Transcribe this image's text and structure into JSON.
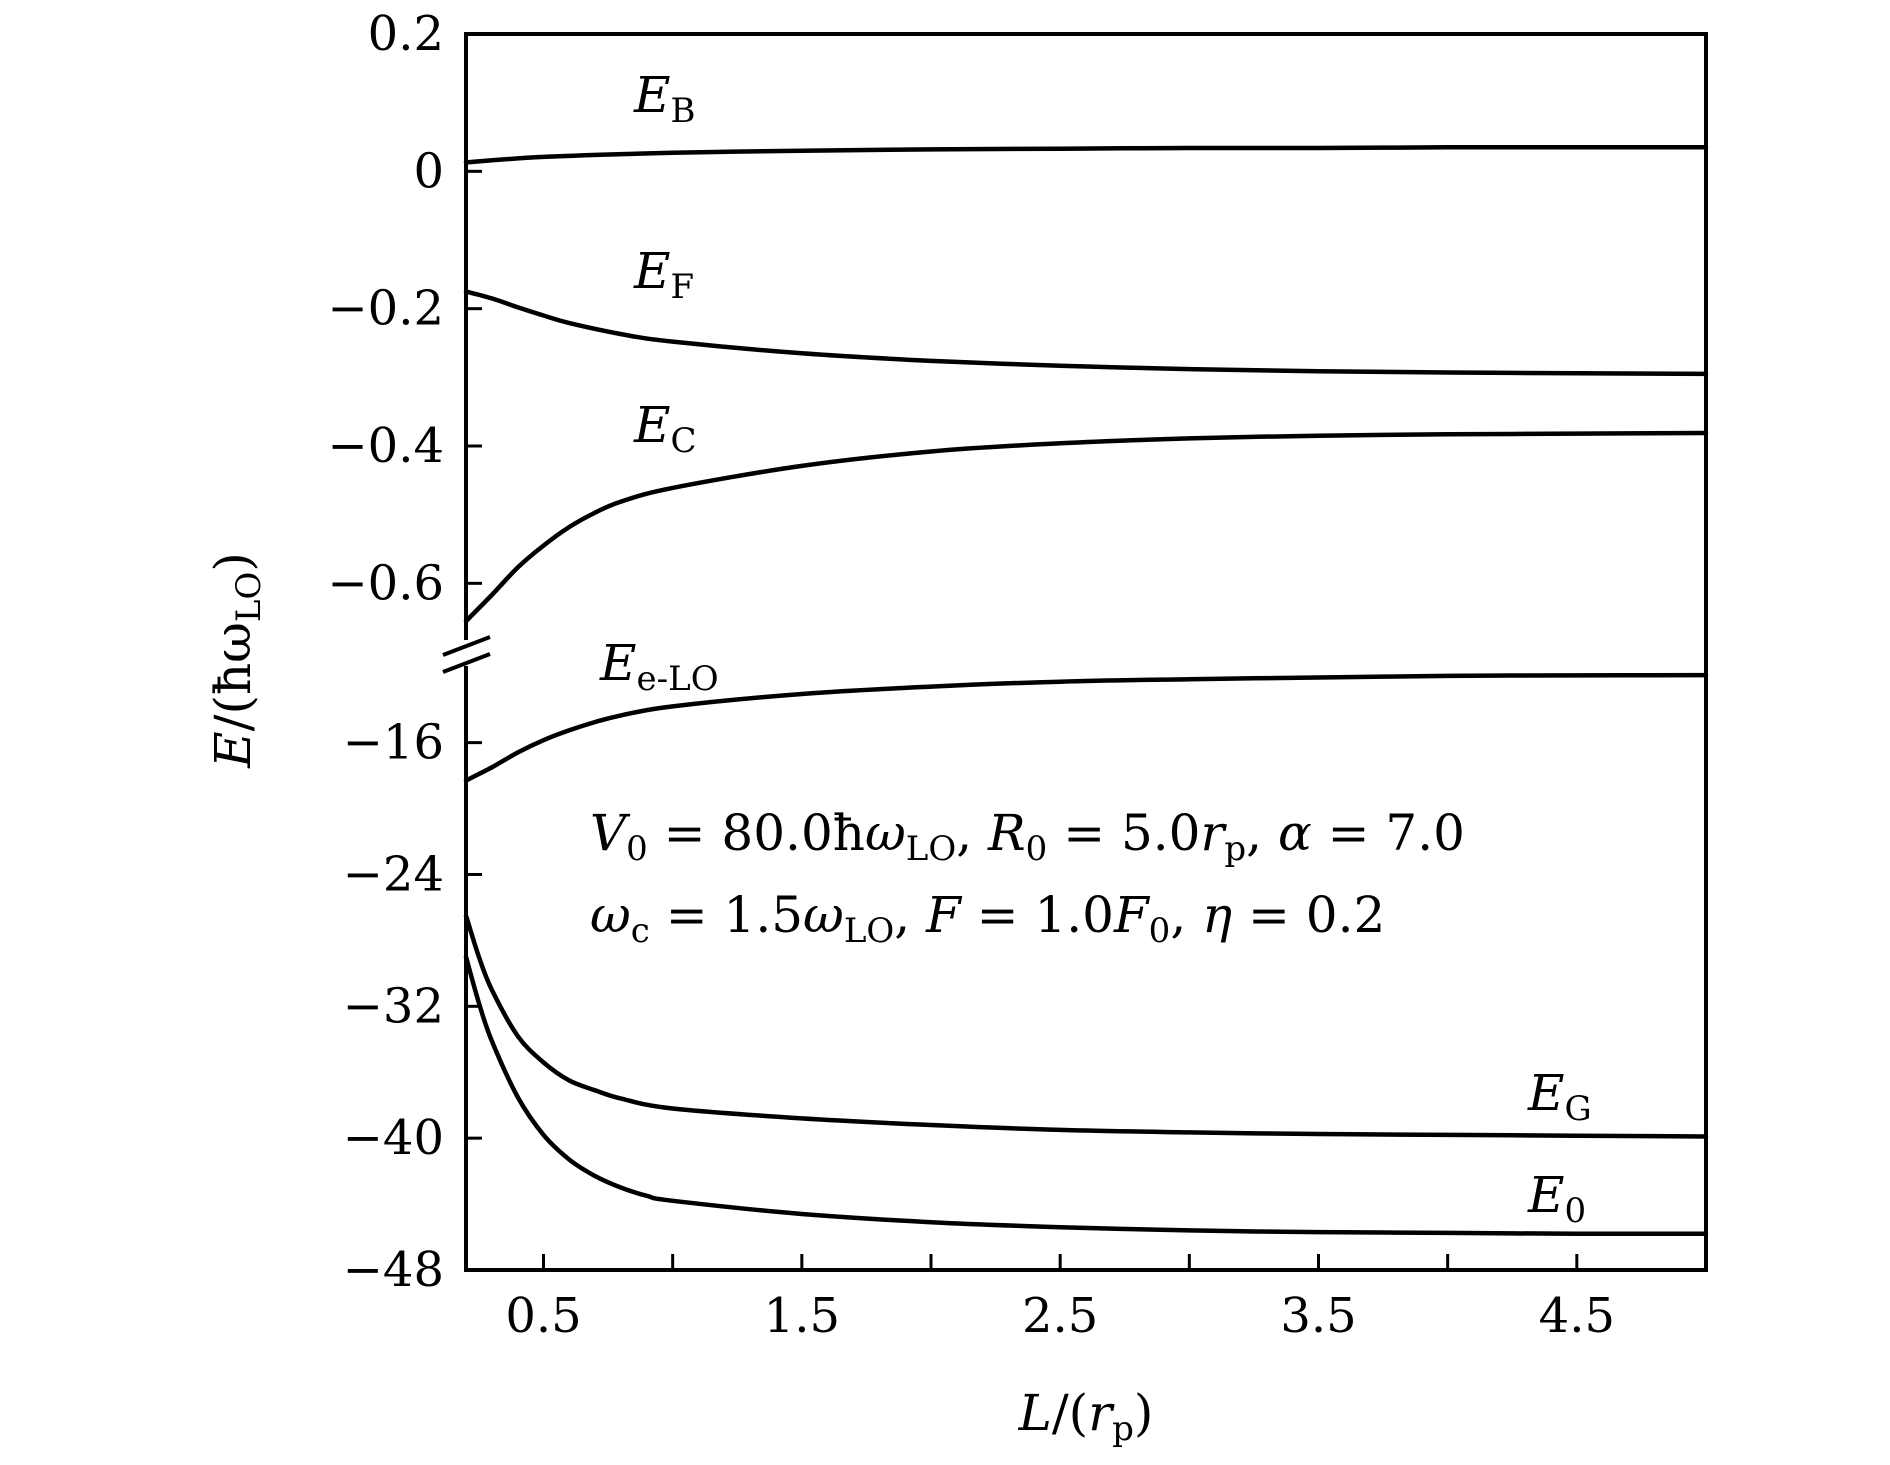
{
  "chart_data": {
    "type": "line",
    "xlabel": {
      "var": "L",
      "rest": "/(",
      "sym": "r",
      "sub": "p",
      "close": ")"
    },
    "ylabel": {
      "var": "E",
      "rest": "/(ħω",
      "sub": "LO",
      "close": ")"
    },
    "xlim": [
      0.2,
      5.0
    ],
    "x_ticks": [
      0.5,
      1.0,
      1.5,
      2.0,
      2.5,
      3.0,
      3.5,
      4.0,
      4.5
    ],
    "x_tick_labels": [
      {
        "value": 0.5,
        "label": "0.5"
      },
      {
        "value": 1.5,
        "label": "1.5"
      },
      {
        "value": 2.5,
        "label": "2.5"
      },
      {
        "value": 3.5,
        "label": "3.5"
      },
      {
        "value": 4.5,
        "label": "4.5"
      }
    ],
    "y_upper_range": [
      -0.7,
      0.2
    ],
    "y_upper_ticks": [
      {
        "value": 0.2,
        "label": "0.2"
      },
      {
        "value": 0.0,
        "label": "0"
      },
      {
        "value": -0.2,
        "label": "−0.2"
      },
      {
        "value": -0.4,
        "label": "−0.4"
      },
      {
        "value": -0.6,
        "label": "−0.6"
      }
    ],
    "y_lower_range": [
      -48,
      -10.5
    ],
    "y_lower_ticks": [
      {
        "value": -16,
        "label": "−16"
      },
      {
        "value": -24,
        "label": "−24"
      },
      {
        "value": -32,
        "label": "−32"
      },
      {
        "value": -40,
        "label": "−40"
      },
      {
        "value": -48,
        "label": "−48"
      }
    ],
    "axis_break": true,
    "params": [
      {
        "text": "V₀ = 80.0ħω_LO,  R₀ = 5.0r_p,  α = 7.0"
      },
      {
        "text": "ω_c = 1.5ω_LO,  F = 1.0F₀,  η = 0.2"
      }
    ],
    "series": [
      {
        "name": "E_B",
        "label_main": "E",
        "label_sub": "B",
        "panel": "upper",
        "x": [
          0.2,
          0.5,
          1.0,
          1.5,
          2.0,
          2.5,
          3.0,
          3.5,
          4.0,
          4.5,
          5.0
        ],
        "y": [
          0.013,
          0.021,
          0.027,
          0.03,
          0.032,
          0.033,
          0.034,
          0.034,
          0.035,
          0.035,
          0.035
        ]
      },
      {
        "name": "E_F",
        "label_main": "E",
        "label_sub": "F",
        "panel": "upper",
        "x": [
          0.2,
          0.3,
          0.4,
          0.5,
          0.6,
          0.8,
          1.0,
          1.5,
          2.0,
          2.5,
          3.0,
          3.5,
          4.0,
          4.5,
          5.0
        ],
        "y": [
          -0.175,
          -0.185,
          -0.198,
          -0.21,
          -0.221,
          -0.237,
          -0.248,
          -0.265,
          -0.276,
          -0.283,
          -0.288,
          -0.291,
          -0.293,
          -0.294,
          -0.295
        ]
      },
      {
        "name": "E_C",
        "label_main": "E",
        "label_sub": "C",
        "panel": "upper",
        "x": [
          0.2,
          0.3,
          0.4,
          0.5,
          0.6,
          0.7,
          0.8,
          1.0,
          1.5,
          2.0,
          2.5,
          3.0,
          3.5,
          4.0,
          4.5,
          5.0
        ],
        "y": [
          -0.655,
          -0.617,
          -0.577,
          -0.545,
          -0.518,
          -0.497,
          -0.481,
          -0.461,
          -0.429,
          -0.408,
          -0.396,
          -0.389,
          -0.385,
          -0.383,
          -0.382,
          -0.381
        ]
      },
      {
        "name": "E_e-LO",
        "label_main": "E",
        "label_sub": "e-LO",
        "panel": "lower",
        "x": [
          0.2,
          0.3,
          0.4,
          0.5,
          0.6,
          0.7,
          0.8,
          1.0,
          1.5,
          2.0,
          2.5,
          3.0,
          3.5,
          4.0,
          4.5,
          5.0
        ],
        "y": [
          -18.3,
          -17.5,
          -16.6,
          -15.85,
          -15.25,
          -14.75,
          -14.35,
          -13.8,
          -13.05,
          -12.6,
          -12.3,
          -12.15,
          -12.05,
          -11.95,
          -11.92,
          -11.9
        ]
      },
      {
        "name": "E_G",
        "label_main": "E",
        "label_sub": "G",
        "panel": "lower",
        "x": [
          0.2,
          0.25,
          0.3,
          0.4,
          0.5,
          0.6,
          0.7,
          0.8,
          1.0,
          1.5,
          2.0,
          2.5,
          3.0,
          3.5,
          4.0,
          4.5,
          5.0
        ],
        "y": [
          -26.5,
          -29.0,
          -31.0,
          -33.8,
          -35.4,
          -36.5,
          -37.1,
          -37.6,
          -38.2,
          -38.8,
          -39.2,
          -39.5,
          -39.65,
          -39.75,
          -39.8,
          -39.85,
          -39.9
        ]
      },
      {
        "name": "E_0",
        "label_main": "E",
        "label_sub": "0",
        "panel": "lower",
        "x": [
          0.2,
          0.25,
          0.3,
          0.4,
          0.5,
          0.6,
          0.7,
          0.8,
          0.9,
          1.0,
          1.5,
          2.0,
          2.5,
          3.0,
          3.5,
          4.0,
          4.5,
          5.0
        ],
        "y": [
          -29.0,
          -31.8,
          -34.1,
          -37.5,
          -39.8,
          -41.3,
          -42.3,
          -43.0,
          -43.5,
          -43.8,
          -44.6,
          -45.1,
          -45.4,
          -45.6,
          -45.7,
          -45.75,
          -45.8,
          -45.8
        ]
      }
    ],
    "grid": false,
    "legend": "labels placed next to curves"
  }
}
